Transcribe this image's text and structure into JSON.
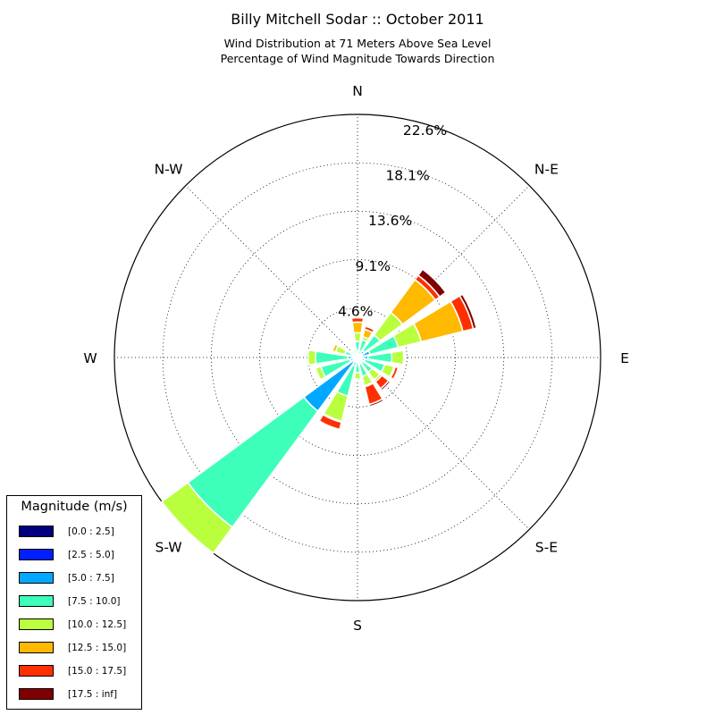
{
  "header": {
    "title": "Billy Mitchell Sodar :: October 2011",
    "subtitle_1": "Wind Distribution at 71 Meters Above Sea Level",
    "subtitle_2": "Percentage of Wind Magnitude Towards Direction"
  },
  "chart_data": {
    "type": "windrose",
    "title": "Billy Mitchell Sodar :: October 2011",
    "subtitle": [
      "Wind Distribution at 71 Meters Above Sea Level",
      "Percentage of Wind Magnitude Towards Direction"
    ],
    "radial_max": 22.6,
    "radial_ticks": [
      4.6,
      9.1,
      13.6,
      18.1,
      22.6
    ],
    "radial_tick_labels": [
      "4.6%",
      "9.1%",
      "13.6%",
      "18.1%",
      "22.6%"
    ],
    "directions": [
      "N",
      "N-E",
      "E",
      "S-E",
      "S",
      "S-W",
      "W",
      "N-W"
    ],
    "direction_degrees": [
      0,
      45,
      90,
      135,
      180,
      225,
      270,
      315
    ],
    "grid": true,
    "legend": {
      "title": "Magnitude (m/s)",
      "placement": "lower-left",
      "bins": [
        "[0.0 : 2.5]",
        "[2.5 : 5.0]",
        "[5.0 : 7.5]",
        "[7.5 : 10.0]",
        "[10.0 : 12.5]",
        "[12.5 : 15.0]",
        "[15.0 : 17.5]",
        "[17.5 : inf]"
      ],
      "colors": [
        "#00007f",
        "#0020ff",
        "#00a8ff",
        "#3dffb9",
        "#b9ff3d",
        "#ffb900",
        "#ff3000",
        "#7f0000"
      ]
    },
    "sectors": [
      {
        "direction_deg": 0,
        "cumulative": [
          0.1,
          0.3,
          0.6,
          1.5,
          2.3,
          3.3,
          3.7,
          3.8
        ]
      },
      {
        "direction_deg": 22.5,
        "cumulative": [
          0.1,
          0.3,
          0.6,
          1.7,
          2.0,
          2.7,
          3.0,
          3.0
        ]
      },
      {
        "direction_deg": 45,
        "cumulative": [
          0.1,
          0.3,
          0.8,
          2.6,
          5.2,
          9.0,
          9.5,
          10.2
        ]
      },
      {
        "direction_deg": 67.5,
        "cumulative": [
          0.1,
          0.5,
          1.2,
          3.9,
          6.1,
          10.1,
          11.1,
          11.4
        ]
      },
      {
        "direction_deg": 90,
        "cumulative": [
          0.1,
          0.4,
          1.0,
          3.2,
          4.3,
          4.4,
          4.4,
          4.4
        ]
      },
      {
        "direction_deg": 112.5,
        "cumulative": [
          0.1,
          0.3,
          0.7,
          2.6,
          3.5,
          3.6,
          3.9,
          4.0
        ]
      },
      {
        "direction_deg": 135,
        "cumulative": [
          0.1,
          0.3,
          0.6,
          1.7,
          2.6,
          2.8,
          3.6,
          3.8
        ]
      },
      {
        "direction_deg": 157.5,
        "cumulative": [
          0.1,
          0.3,
          0.6,
          1.8,
          2.7,
          2.8,
          4.5,
          4.7
        ]
      },
      {
        "direction_deg": 180,
        "cumulative": [
          0.1,
          0.2,
          0.5,
          1.4,
          2.0,
          2.0,
          2.0,
          2.0
        ]
      },
      {
        "direction_deg": 202.5,
        "cumulative": [
          0.1,
          0.3,
          0.8,
          3.7,
          6.1,
          6.2,
          6.9,
          7.0
        ]
      },
      {
        "direction_deg": 225,
        "cumulative": [
          0.1,
          0.4,
          6.2,
          19.6,
          22.6,
          22.6,
          22.6,
          22.6
        ]
      },
      {
        "direction_deg": 247.5,
        "cumulative": [
          0.1,
          0.3,
          0.7,
          3.5,
          4.0,
          4.0,
          4.0,
          4.0
        ]
      },
      {
        "direction_deg": 270,
        "cumulative": [
          0.1,
          0.4,
          0.9,
          3.9,
          4.6,
          4.6,
          4.6,
          4.6
        ]
      },
      {
        "direction_deg": 292.5,
        "cumulative": [
          0.1,
          0.3,
          0.6,
          1.2,
          2.1,
          2.4,
          2.4,
          2.4
        ]
      },
      {
        "direction_deg": 315,
        "cumulative": [
          0.1,
          0.2,
          0.4,
          0.7,
          0.8,
          0.8,
          0.8,
          0.8
        ]
      },
      {
        "direction_deg": 337.5,
        "cumulative": [
          0.1,
          0.2,
          0.4,
          0.7,
          0.8,
          0.8,
          0.8,
          0.8
        ]
      }
    ]
  }
}
